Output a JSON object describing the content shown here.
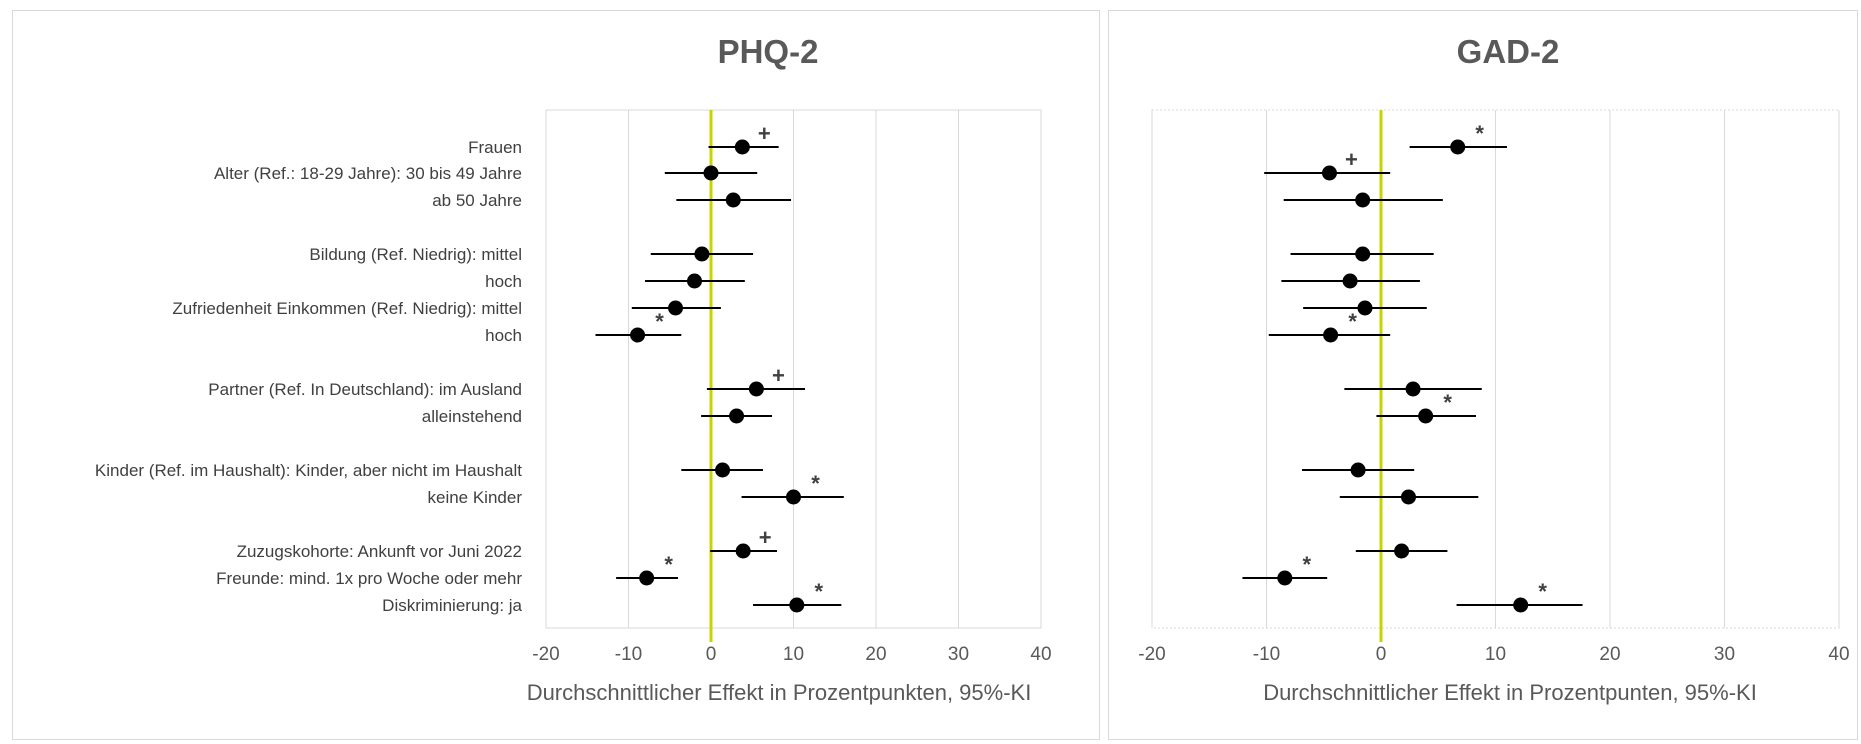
{
  "chart_data": [
    {
      "type": "scatter",
      "title": "PHQ-2",
      "xlabel": "Durchschnittlicher Effekt in Prozentpunkten, 95%-KI",
      "ylabel": "",
      "xlim": [
        -20,
        40
      ],
      "x_ticks": [
        "-20",
        "-10",
        "0",
        "10",
        "20",
        "30",
        "40"
      ],
      "grid": true,
      "reference_line_x": 0,
      "reference_line_color": "#c8d400",
      "row_labels": [
        "Frauen",
        "Alter (Ref.: 18-29 Jahre): 30 bis 49 Jahre",
        "ab 50 Jahre",
        "Bildung (Ref. Niedrig): mittel",
        "hoch",
        "Zufriedenheit Einkommen (Ref. Niedrig): mittel",
        "hoch",
        "Partner (Ref. In Deutschland): im Ausland",
        "alleinstehend",
        "Kinder (Ref. im Haushalt): Kinder, aber nicht im Haushalt",
        "keine Kinder",
        "Zuzugskohorte: Ankunft vor Juni 2022",
        "Freunde: mind. 1x pro Woche oder mehr",
        "Diskriminierung: ja"
      ],
      "rows": [
        {
          "estimate": 3.8,
          "ci": [
            -0.3,
            8.2
          ],
          "sig": "+"
        },
        {
          "estimate": 0.0,
          "ci": [
            -5.6,
            5.6
          ],
          "sig": ""
        },
        {
          "estimate": 2.7,
          "ci": [
            -4.2,
            9.7
          ],
          "sig": ""
        },
        {
          "estimate": -1.1,
          "ci": [
            -7.3,
            5.1
          ],
          "sig": ""
        },
        {
          "estimate": -2.0,
          "ci": [
            -8.0,
            4.1
          ],
          "sig": ""
        },
        {
          "estimate": -4.3,
          "ci": [
            -9.6,
            1.2
          ],
          "sig": ""
        },
        {
          "estimate": -8.9,
          "ci": [
            -14.0,
            -3.6
          ],
          "sig": "*"
        },
        {
          "estimate": 5.5,
          "ci": [
            -0.5,
            11.4
          ],
          "sig": "+"
        },
        {
          "estimate": 3.1,
          "ci": [
            -1.2,
            7.4
          ],
          "sig": ""
        },
        {
          "estimate": 1.4,
          "ci": [
            -3.6,
            6.3
          ],
          "sig": ""
        },
        {
          "estimate": 10.0,
          "ci": [
            3.7,
            16.1
          ],
          "sig": "*"
        },
        {
          "estimate": 3.9,
          "ci": [
            -0.1,
            8.0
          ],
          "sig": "+"
        },
        {
          "estimate": -7.8,
          "ci": [
            -11.5,
            -4.0
          ],
          "sig": "*"
        },
        {
          "estimate": 10.4,
          "ci": [
            5.1,
            15.8
          ],
          "sig": "*"
        }
      ]
    },
    {
      "type": "scatter",
      "title": "GAD-2",
      "xlabel": "Durchschnittlicher Effekt in Prozentpunten, 95%-KI",
      "ylabel": "",
      "xlim": [
        -20,
        40
      ],
      "x_ticks": [
        "-20",
        "-10",
        "0",
        "10",
        "20",
        "30",
        "40"
      ],
      "grid": true,
      "reference_line_x": 0,
      "reference_line_color": "#c8d400",
      "rows": [
        {
          "estimate": 6.7,
          "ci": [
            2.5,
            11.0
          ],
          "sig": "*"
        },
        {
          "estimate": -4.5,
          "ci": [
            -10.2,
            0.8
          ],
          "sig": "+"
        },
        {
          "estimate": -1.6,
          "ci": [
            -8.5,
            5.4
          ],
          "sig": ""
        },
        {
          "estimate": -1.6,
          "ci": [
            -7.9,
            4.6
          ],
          "sig": ""
        },
        {
          "estimate": -2.7,
          "ci": [
            -8.7,
            3.4
          ],
          "sig": ""
        },
        {
          "estimate": -1.4,
          "ci": [
            -6.8,
            4.0
          ],
          "sig": ""
        },
        {
          "estimate": -4.4,
          "ci": [
            -9.8,
            0.8
          ],
          "sig": "*"
        },
        {
          "estimate": 2.8,
          "ci": [
            -3.2,
            8.8
          ],
          "sig": ""
        },
        {
          "estimate": 3.9,
          "ci": [
            -0.4,
            8.3
          ],
          "sig": "*"
        },
        {
          "estimate": -2.0,
          "ci": [
            -6.9,
            2.9
          ],
          "sig": ""
        },
        {
          "estimate": 2.4,
          "ci": [
            -3.6,
            8.5
          ],
          "sig": ""
        },
        {
          "estimate": 1.8,
          "ci": [
            -2.2,
            5.8
          ],
          "sig": ""
        },
        {
          "estimate": -8.4,
          "ci": [
            -12.1,
            -4.7
          ],
          "sig": "*"
        },
        {
          "estimate": 12.2,
          "ci": [
            6.6,
            17.6
          ],
          "sig": "*"
        }
      ]
    }
  ]
}
